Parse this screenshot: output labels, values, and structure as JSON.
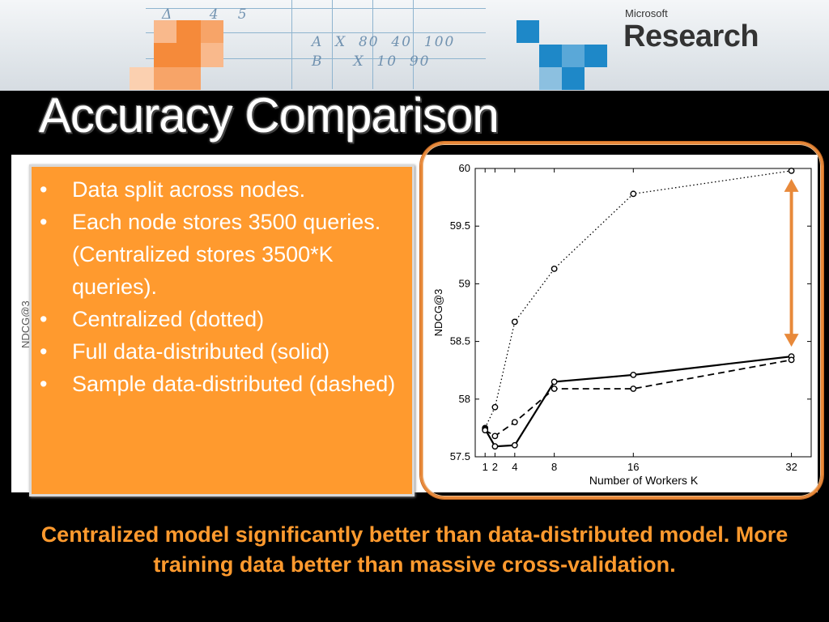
{
  "header": {
    "logo_small": "Microsoft",
    "logo_big": "Research",
    "accent_orange": "#f58a3a",
    "accent_blue": "#1e88c8"
  },
  "slide_title": "Accuracy Comparison",
  "behind_label": "NDCG@3",
  "bullets": [
    "Data split across nodes.",
    "Each node stores 3500 queries. (Centralized stores 3500*K queries).",
    "Centralized (dotted)",
    "Full data-distributed (solid)",
    "Sample data-distributed (dashed)"
  ],
  "chart_data": {
    "type": "line",
    "xlabel": "Number of Workers K",
    "ylabel": "NDCG@3",
    "x_ticks": [
      1,
      2,
      4,
      8,
      16,
      32
    ],
    "y_ticks": [
      57.5,
      58,
      58.5,
      59,
      59.5,
      60
    ],
    "ylim": [
      57.5,
      60
    ],
    "xlim": [
      0,
      34
    ],
    "grid": false,
    "series": [
      {
        "style": "dotted",
        "x": [
          1,
          2,
          4,
          8,
          16,
          32
        ],
        "y": [
          57.75,
          57.93,
          58.67,
          59.13,
          59.78,
          59.98
        ]
      },
      {
        "style": "solid",
        "x": [
          1,
          2,
          4,
          8,
          16,
          32
        ],
        "y": [
          57.74,
          57.59,
          57.6,
          58.15,
          58.21,
          58.37
        ]
      },
      {
        "style": "dashed",
        "x": [
          1,
          2,
          4,
          8,
          16,
          32
        ],
        "y": [
          57.73,
          57.68,
          57.8,
          58.09,
          58.09,
          58.34
        ]
      }
    ],
    "annotation": "double-headed arrow between centralized and distributed at K=32",
    "annotation_color": "#e8893a"
  },
  "caption": "Centralized model significantly better than data-distributed model. More training data better than massive cross-validation."
}
